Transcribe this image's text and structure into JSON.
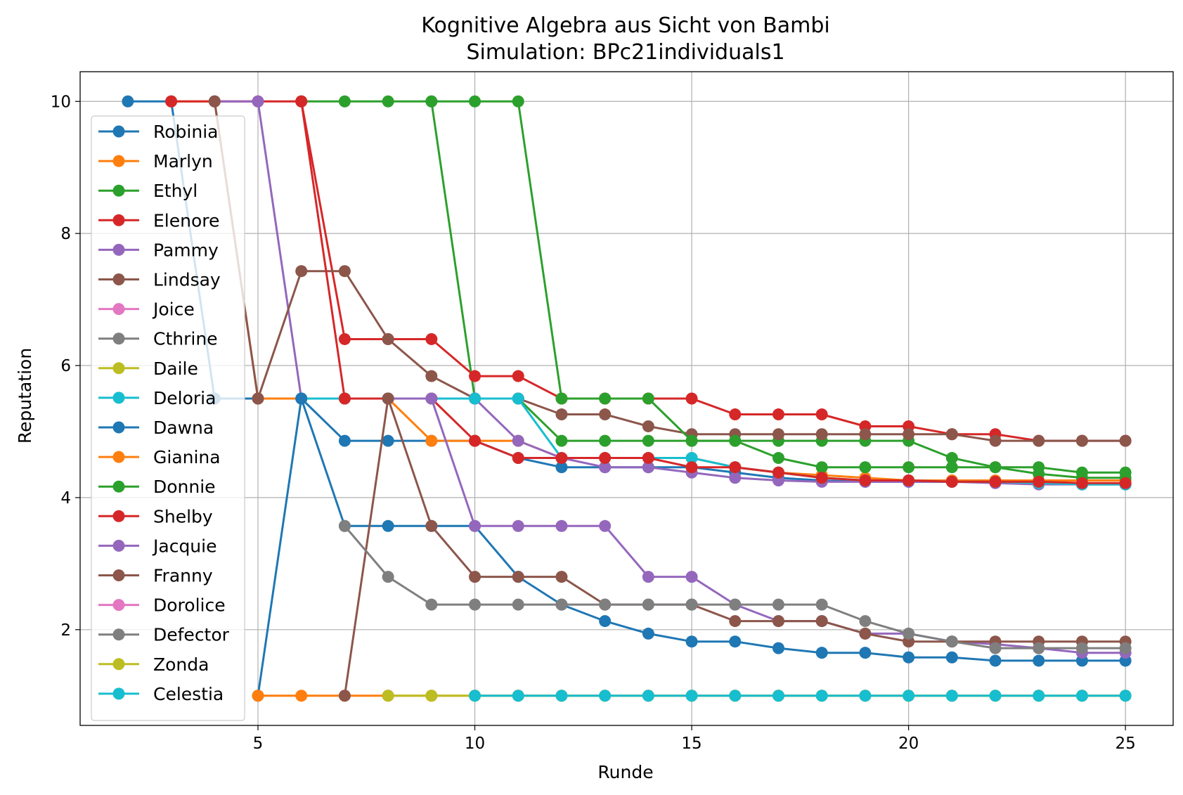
{
  "chart_data": {
    "type": "line",
    "title": "Kognitive Algebra aus Sicht von Bambi",
    "subtitle": "Simulation: BPc21individuals1",
    "xlabel": "Runde",
    "ylabel": "Reputation",
    "xlim": [
      0.9,
      26.1
    ],
    "ylim": [
      0.55,
      10.45
    ],
    "xticks": [
      5,
      10,
      15,
      20,
      25
    ],
    "yticks": [
      2,
      4,
      6,
      8,
      10
    ],
    "grid": true,
    "legend_position": "left",
    "series": [
      {
        "name": "Robinia",
        "color": "#1f77b4",
        "x": [
          2,
          3,
          4,
          5,
          6,
          7,
          8,
          9,
          10,
          11,
          12,
          13,
          14,
          15,
          16,
          17,
          18,
          19,
          20,
          21,
          22,
          23,
          24,
          25
        ],
        "y": [
          10,
          10,
          5.5,
          5.5,
          5.5,
          4.86,
          4.86,
          4.86,
          4.86,
          4.6,
          4.46,
          4.46,
          4.46,
          4.46,
          4.38,
          4.3,
          4.26,
          4.24,
          4.24,
          4.24,
          4.24,
          4.22,
          4.2,
          4.2
        ]
      },
      {
        "name": "Marlyn",
        "color": "#ff7f0e",
        "x": [
          3,
          4,
          5,
          6,
          7,
          8,
          9,
          10,
          11,
          12,
          13,
          14,
          15,
          16,
          17,
          18,
          19,
          20,
          21,
          22,
          23,
          24,
          25
        ],
        "y": [
          10,
          10,
          5.5,
          5.5,
          5.5,
          5.5,
          4.86,
          4.86,
          4.86,
          4.6,
          4.6,
          4.6,
          4.6,
          4.46,
          4.38,
          4.34,
          4.3,
          4.26,
          4.26,
          4.26,
          4.26,
          4.26,
          4.26
        ]
      },
      {
        "name": "Ethyl",
        "color": "#2ca02c",
        "x": [
          6,
          7,
          8,
          9,
          10,
          11,
          12,
          13,
          14,
          15,
          16,
          17,
          18,
          19,
          20,
          21,
          22,
          23,
          24,
          25
        ],
        "y": [
          10,
          10,
          10,
          10,
          5.5,
          5.5,
          4.86,
          4.86,
          4.86,
          4.86,
          4.86,
          4.86,
          4.86,
          4.86,
          4.86,
          4.6,
          4.46,
          4.36,
          4.3,
          4.3
        ]
      },
      {
        "name": "Elenore",
        "color": "#d62728",
        "x": [
          3,
          4,
          5,
          6,
          7,
          8,
          9,
          10,
          11,
          12,
          13,
          14,
          15,
          16,
          17,
          18,
          19,
          20,
          21,
          22,
          23,
          24,
          25
        ],
        "y": [
          10,
          10,
          10,
          10,
          6.4,
          6.4,
          6.4,
          5.84,
          5.84,
          5.5,
          5.5,
          5.5,
          5.5,
          5.26,
          5.26,
          5.26,
          5.08,
          5.08,
          4.96,
          4.96,
          4.86,
          4.86,
          4.86
        ]
      },
      {
        "name": "Pammy",
        "color": "#9467bd",
        "x": [
          4,
          5,
          6,
          7,
          8,
          9,
          10,
          11,
          12,
          13,
          14,
          15,
          16,
          17,
          18,
          19,
          20,
          21,
          22,
          23,
          24,
          25
        ],
        "y": [
          10,
          10,
          5.5,
          5.5,
          5.5,
          5.5,
          5.5,
          4.86,
          4.6,
          4.46,
          4.46,
          4.38,
          4.3,
          4.26,
          4.24,
          4.24,
          4.24,
          4.24,
          4.22,
          4.2,
          4.2,
          4.2
        ]
      },
      {
        "name": "Lindsay",
        "color": "#8c564b",
        "x": [
          4,
          5,
          6,
          7,
          8,
          9,
          10,
          11,
          12,
          13,
          14,
          15,
          16,
          17,
          18,
          19,
          20,
          21,
          22,
          23,
          24,
          25
        ],
        "y": [
          10,
          5.5,
          7.43,
          7.43,
          6.4,
          5.84,
          5.5,
          5.5,
          5.26,
          5.26,
          5.08,
          4.96,
          4.96,
          4.96,
          4.96,
          4.96,
          4.96,
          4.96,
          4.86,
          4.86,
          4.86,
          4.86
        ]
      },
      {
        "name": "Joice",
        "color": "#e377c2",
        "x": [],
        "y": []
      },
      {
        "name": "Cthrine",
        "color": "#7f7f7f",
        "x": [],
        "y": []
      },
      {
        "name": "Daile",
        "color": "#bcbd22",
        "x": [],
        "y": []
      },
      {
        "name": "Deloria",
        "color": "#17becf",
        "x": [
          6,
          7,
          8,
          9,
          10,
          11,
          12,
          13,
          14,
          15,
          16,
          17,
          18,
          19,
          20,
          21,
          22,
          23,
          24,
          25
        ],
        "y": [
          5.5,
          5.5,
          5.5,
          5.5,
          5.5,
          5.5,
          4.6,
          4.6,
          4.6,
          4.6,
          4.46,
          4.38,
          4.3,
          4.26,
          4.26,
          4.24,
          4.24,
          4.22,
          4.2,
          4.2
        ]
      },
      {
        "name": "Dawna",
        "color": "#1f77b4",
        "x": [
          5,
          6,
          7,
          8,
          9,
          10,
          11,
          12,
          13,
          14,
          15,
          16,
          17,
          18,
          19,
          20,
          21,
          22,
          23,
          24,
          25
        ],
        "y": [
          1,
          5.5,
          3.57,
          3.57,
          3.57,
          3.57,
          2.8,
          2.38,
          2.13,
          1.94,
          1.82,
          1.82,
          1.72,
          1.65,
          1.65,
          1.58,
          1.58,
          1.53,
          1.53,
          1.53,
          1.53
        ]
      },
      {
        "name": "Gianina",
        "color": "#ff7f0e",
        "x": [
          5,
          6,
          7,
          8,
          9,
          10,
          11,
          12,
          13,
          14,
          15,
          16,
          17,
          18,
          19,
          20,
          21,
          22,
          23,
          24,
          25
        ],
        "y": [
          1,
          1,
          1,
          1,
          1,
          1,
          1,
          1,
          1,
          1,
          1,
          1,
          1,
          1,
          1,
          1,
          1,
          1,
          1,
          1,
          1
        ]
      },
      {
        "name": "Donnie",
        "color": "#2ca02c",
        "x": [
          9,
          10,
          11,
          12,
          13,
          14,
          15,
          16,
          17,
          18,
          19,
          20,
          21,
          22,
          23,
          24,
          25
        ],
        "y": [
          10,
          10,
          10,
          5.5,
          5.5,
          5.5,
          4.86,
          4.86,
          4.6,
          4.46,
          4.46,
          4.46,
          4.46,
          4.46,
          4.46,
          4.38,
          4.38
        ]
      },
      {
        "name": "Shelby",
        "color": "#d62728",
        "x": [
          6,
          7,
          8,
          9,
          10,
          11,
          12,
          13,
          14,
          15,
          16,
          17,
          18,
          19,
          20,
          21,
          22,
          23,
          24,
          25
        ],
        "y": [
          10,
          5.5,
          5.5,
          5.5,
          4.86,
          4.6,
          4.6,
          4.6,
          4.6,
          4.46,
          4.46,
          4.38,
          4.3,
          4.26,
          4.26,
          4.24,
          4.24,
          4.24,
          4.22,
          4.22
        ]
      },
      {
        "name": "Jacquie",
        "color": "#9467bd",
        "x": [
          8,
          9,
          10,
          11,
          12,
          13,
          14,
          15,
          16,
          17,
          18,
          19,
          20,
          21,
          22,
          23,
          24,
          25
        ],
        "y": [
          5.5,
          5.5,
          3.57,
          3.57,
          3.57,
          3.57,
          2.8,
          2.8,
          2.38,
          2.13,
          2.13,
          1.94,
          1.94,
          1.82,
          1.78,
          1.72,
          1.65,
          1.65
        ]
      },
      {
        "name": "Franny",
        "color": "#8c564b",
        "x": [
          7,
          8,
          9,
          10,
          11,
          12,
          13,
          14,
          15,
          16,
          17,
          18,
          19,
          20,
          21,
          22,
          23,
          24,
          25
        ],
        "y": [
          1,
          5.5,
          3.57,
          2.8,
          2.8,
          2.8,
          2.38,
          2.38,
          2.38,
          2.13,
          2.13,
          2.13,
          1.94,
          1.82,
          1.82,
          1.82,
          1.82,
          1.82,
          1.82
        ]
      },
      {
        "name": "Dorolice",
        "color": "#e377c2",
        "x": [],
        "y": []
      },
      {
        "name": "Defector",
        "color": "#7f7f7f",
        "x": [
          7,
          8,
          9,
          10,
          11,
          12,
          13,
          14,
          15,
          16,
          17,
          18,
          19,
          20,
          21,
          22,
          23,
          24,
          25
        ],
        "y": [
          3.57,
          2.8,
          2.38,
          2.38,
          2.38,
          2.38,
          2.38,
          2.38,
          2.38,
          2.38,
          2.38,
          2.38,
          2.13,
          1.94,
          1.82,
          1.72,
          1.72,
          1.72,
          1.72
        ]
      },
      {
        "name": "Zonda",
        "color": "#bcbd22",
        "x": [
          8,
          9,
          10,
          11,
          12,
          13,
          14,
          15,
          16,
          17,
          18,
          19,
          20,
          21,
          22,
          23,
          24,
          25
        ],
        "y": [
          1,
          1,
          1,
          1,
          1,
          1,
          1,
          1,
          1,
          1,
          1,
          1,
          1,
          1,
          1,
          1,
          1,
          1
        ]
      },
      {
        "name": "Celestia",
        "color": "#17becf",
        "x": [
          10,
          11,
          12,
          13,
          14,
          15,
          16,
          17,
          18,
          19,
          20,
          21,
          22,
          23,
          24,
          25
        ],
        "y": [
          1,
          1,
          1,
          1,
          1,
          1,
          1,
          1,
          1,
          1,
          1,
          1,
          1,
          1,
          1,
          1
        ]
      }
    ]
  }
}
